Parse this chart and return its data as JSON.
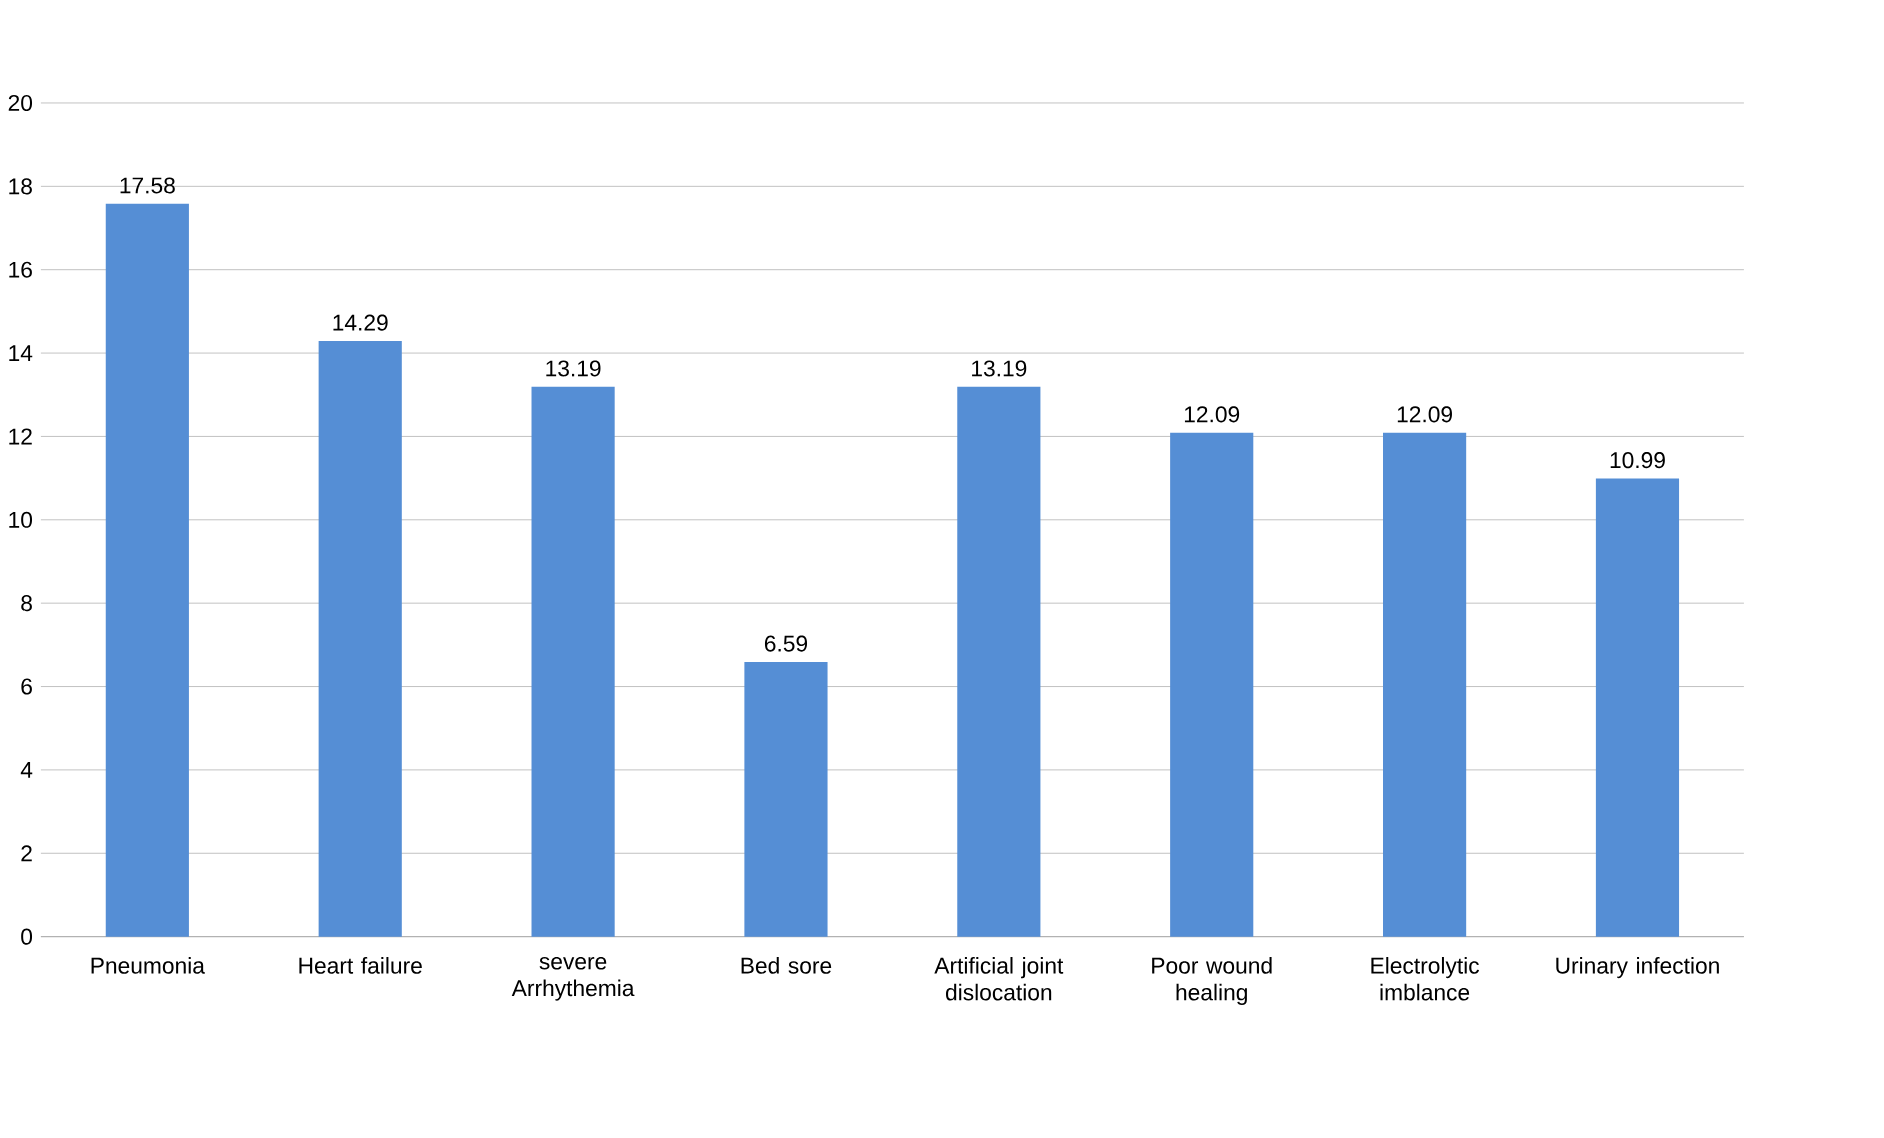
{
  "chart_data": {
    "type": "bar",
    "categories": [
      "Pneumonia",
      "Heart failure",
      "severe Arrhythemia",
      "Bed sore",
      "Artificial joint dislocation",
      "Poor wound healing",
      "Electrolytic imblance",
      "Urinary infection"
    ],
    "values": [
      17.58,
      14.29,
      13.19,
      6.59,
      13.19,
      12.09,
      12.09,
      10.99
    ],
    "color": "#558ed5",
    "ylim": [
      0,
      20
    ],
    "yticks": [
      0,
      2,
      4,
      6,
      8,
      10,
      12,
      14,
      16,
      18,
      20
    ],
    "grid": "y",
    "data_labels": true
  }
}
